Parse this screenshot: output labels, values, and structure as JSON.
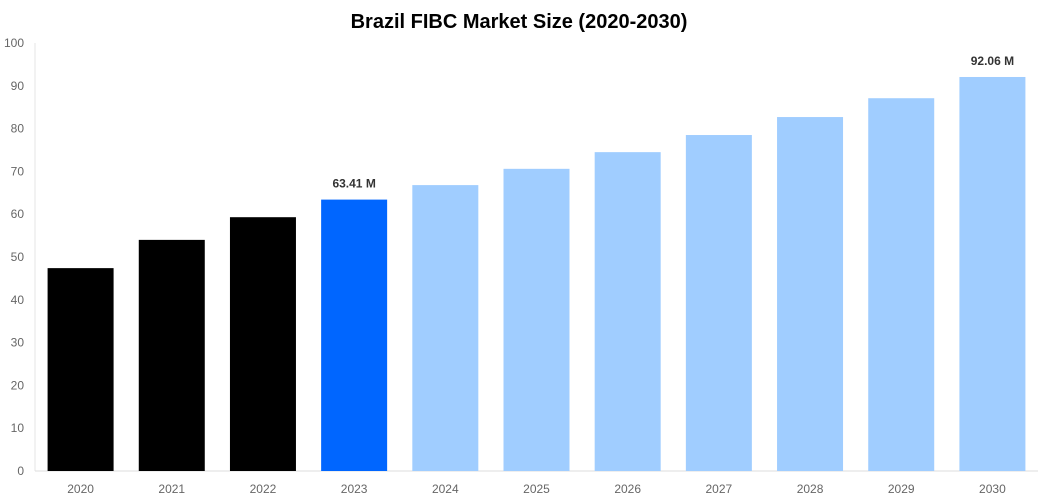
{
  "chart_data": {
    "type": "bar",
    "title": "Brazil FIBC Market Size (2020-2030)",
    "xlabel": "",
    "ylabel": "",
    "ylim": [
      0,
      100
    ],
    "yticks": [
      0,
      10,
      20,
      30,
      40,
      50,
      60,
      70,
      80,
      90,
      100
    ],
    "grid": false,
    "categories": [
      "2020",
      "2021",
      "2022",
      "2023",
      "2024",
      "2025",
      "2026",
      "2027",
      "2028",
      "2029",
      "2030"
    ],
    "values": [
      47.4,
      54.0,
      59.3,
      63.41,
      66.8,
      70.6,
      74.5,
      78.5,
      82.7,
      87.1,
      92.06
    ],
    "bar_colors": [
      "#000000",
      "#000000",
      "#000000",
      "#0066ff",
      "#a0cdff",
      "#a0cdff",
      "#a0cdff",
      "#a0cdff",
      "#a0cdff",
      "#a0cdff",
      "#a0cdff"
    ],
    "data_labels": [
      "",
      "",
      "",
      "63.41 M",
      "",
      "",
      "",
      "",
      "",
      "",
      "92.06 M"
    ]
  }
}
